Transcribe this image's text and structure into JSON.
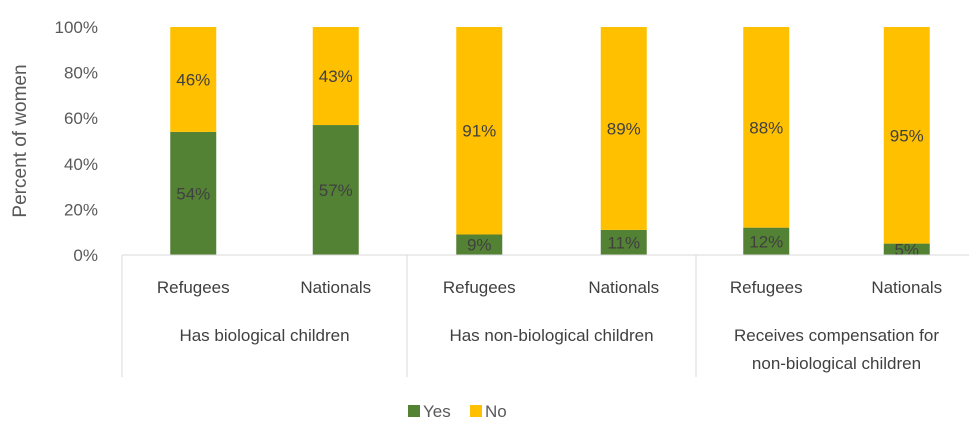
{
  "chart_data": {
    "type": "bar",
    "stacked": true,
    "ylabel": "Percent of women",
    "ylim": [
      0,
      100
    ],
    "yticks": [
      "0%",
      "20%",
      "40%",
      "60%",
      "80%",
      "100%"
    ],
    "groups": [
      {
        "label_lines": [
          "Has biological children"
        ],
        "categories": [
          "Refugees",
          "Nationals"
        ]
      },
      {
        "label_lines": [
          "Has non-biological children"
        ],
        "categories": [
          "Refugees",
          "Nationals"
        ]
      },
      {
        "label_lines": [
          "Receives compensation for",
          "non-biological children"
        ],
        "categories": [
          "Refugees",
          "Nationals"
        ]
      }
    ],
    "series": [
      {
        "name": "Yes",
        "color": "#548235",
        "values": [
          54,
          57,
          9,
          11,
          12,
          5
        ],
        "labels": [
          "54%",
          "57%",
          "9%",
          "11%",
          "12%",
          "5%"
        ]
      },
      {
        "name": "No",
        "color": "#FFC000",
        "values": [
          46,
          43,
          91,
          89,
          88,
          95
        ],
        "labels": [
          "46%",
          "43%",
          "91%",
          "89%",
          "88%",
          "95%"
        ]
      }
    ],
    "legend_position": "bottom",
    "grid": false
  }
}
